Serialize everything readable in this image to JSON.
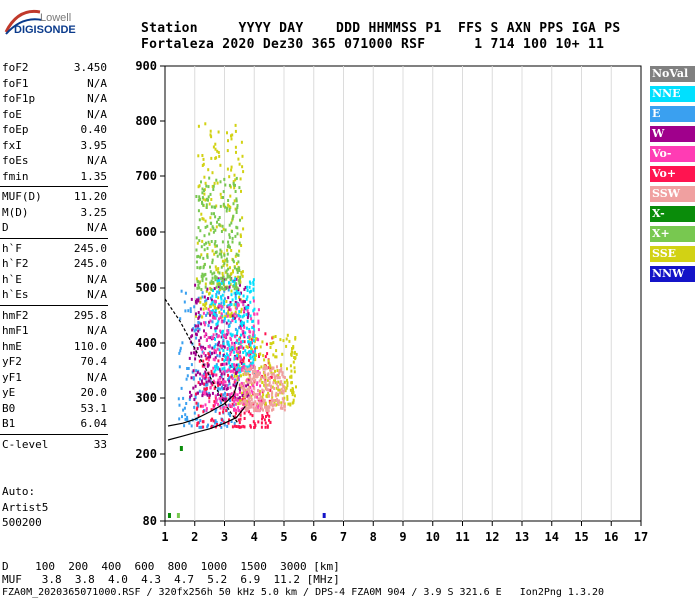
{
  "logo": {
    "line1": "Lowell",
    "line2": "DIGISONDE"
  },
  "header": {
    "row1": "Station     YYYY DAY    DDD HHMMSS P1  FFS S AXN PPS IGA PS",
    "row2": "Fortaleza 2020 Dez30 365 071000 RSF      1 714 100 10+ 11"
  },
  "params": [
    [
      {
        "label": "foF2",
        "value": "3.450"
      },
      {
        "label": "foF1",
        "value": "N/A"
      },
      {
        "label": "foF1p",
        "value": "N/A"
      },
      {
        "label": "foE",
        "value": "N/A"
      },
      {
        "label": "foEp",
        "value": "0.40"
      },
      {
        "label": "fxI",
        "value": "3.95"
      },
      {
        "label": "foEs",
        "value": "N/A"
      },
      {
        "label": "fmin",
        "value": "1.35"
      }
    ],
    [
      {
        "label": "MUF(D)",
        "value": "11.20"
      },
      {
        "label": "M(D)",
        "value": "3.25"
      },
      {
        "label": "D",
        "value": "N/A"
      }
    ],
    [
      {
        "label": "h`F",
        "value": "245.0"
      },
      {
        "label": "h`F2",
        "value": "245.0"
      },
      {
        "label": "h`E",
        "value": "N/A"
      },
      {
        "label": "h`Es",
        "value": "N/A"
      }
    ],
    [
      {
        "label": "hmF2",
        "value": "295.8"
      },
      {
        "label": "hmF1",
        "value": "N/A"
      },
      {
        "label": "hmE",
        "value": "110.0"
      },
      {
        "label": "yF2",
        "value": "70.4"
      },
      {
        "label": "yF1",
        "value": "N/A"
      },
      {
        "label": "yE",
        "value": "20.0"
      },
      {
        "label": "B0",
        "value": "53.1"
      },
      {
        "label": "B1",
        "value": "6.04"
      }
    ],
    [
      {
        "label": "C-level",
        "value": "33"
      }
    ]
  ],
  "auto": {
    "line1": "Auto:",
    "line2": "Artist5",
    "line3": "500200"
  },
  "legend": [
    {
      "label": "NoVal",
      "color": "#808080"
    },
    {
      "label": "NNE",
      "color": "#00e0ff"
    },
    {
      "label": "E",
      "color": "#3aa0f0"
    },
    {
      "label": "W",
      "color": "#a0008c"
    },
    {
      "label": "Vo-",
      "color": "#ff3cb4"
    },
    {
      "label": "Vo+",
      "color": "#ff1450"
    },
    {
      "label": "SSW",
      "color": "#f0a0a0"
    },
    {
      "label": "X-",
      "color": "#0a8c0a"
    },
    {
      "label": "X+",
      "color": "#78c850"
    },
    {
      "label": "SSE",
      "color": "#d2d214"
    },
    {
      "label": "NNW",
      "color": "#1414c8"
    }
  ],
  "footer": {
    "d_row": "D    100  200  400  600  800  1000  1500  3000 [km]",
    "muf_row": "MUF   3.8  3.8  4.0  4.3  4.7  5.2  6.9  11.2 [MHz]",
    "file_row": "FZA0M_2020365071000.RSF / 320fx256h 50 kHz 5.0 km / DPS-4 FZA0M 904 / 3.9 S 321.6 E   Ion2Png 1.3.20"
  },
  "chart_data": {
    "type": "scatter",
    "xlabel": "",
    "ylabel": "",
    "xlim": [
      1,
      17
    ],
    "ylim": [
      80,
      900
    ],
    "x_ticks": [
      "1",
      "2",
      "3",
      "4",
      "5",
      "6",
      "7",
      "8",
      "9",
      "10",
      "11",
      "12",
      "13",
      "14",
      "15",
      "16",
      "17"
    ],
    "y_ticks": [
      "80",
      "200",
      "300",
      "400",
      "500",
      "600",
      "700",
      "800",
      "900"
    ],
    "yscale": "nonlinear (ionogram height)",
    "traces": [
      {
        "name": "profile",
        "points": [
          [
            1.0,
            480
          ],
          [
            1.5,
            440
          ],
          [
            2.0,
            390
          ],
          [
            2.5,
            340
          ],
          [
            2.9,
            300
          ],
          [
            3.2,
            275
          ],
          [
            3.45,
            255
          ]
        ]
      },
      {
        "name": "virtual-height",
        "points": [
          [
            1.1,
            250
          ],
          [
            1.6,
            255
          ],
          [
            2.0,
            262
          ],
          [
            2.5,
            275
          ],
          [
            3.0,
            290
          ],
          [
            3.3,
            305
          ],
          [
            3.45,
            330
          ]
        ]
      },
      {
        "name": "true-height",
        "points": [
          [
            1.1,
            225
          ],
          [
            1.6,
            232
          ],
          [
            2.0,
            238
          ],
          [
            2.5,
            245
          ],
          [
            3.0,
            255
          ],
          [
            3.4,
            265
          ],
          [
            3.7,
            285
          ]
        ]
      }
    ],
    "clusters": [
      {
        "color": "#3aa0f0",
        "x": [
          1.4,
          3.5
        ],
        "y": [
          250,
          500
        ]
      },
      {
        "color": "#ff1450",
        "x": [
          2.0,
          4.6
        ],
        "y": [
          250,
          420
        ]
      },
      {
        "color": "#d2d214",
        "x": [
          3.3,
          5.4
        ],
        "y": [
          290,
          420
        ]
      },
      {
        "color": "#d2d214",
        "x": [
          2.0,
          3.6
        ],
        "y": [
          450,
          800
        ]
      },
      {
        "color": "#a0008c",
        "x": [
          1.8,
          3.8
        ],
        "y": [
          300,
          520
        ]
      },
      {
        "color": "#00e0ff",
        "x": [
          2.5,
          4.0
        ],
        "y": [
          350,
          520
        ]
      },
      {
        "color": "#ff3cb4",
        "x": [
          2.2,
          4.2
        ],
        "y": [
          280,
          480
        ]
      },
      {
        "color": "#f0a0a0",
        "x": [
          3.5,
          5.0
        ],
        "y": [
          280,
          360
        ]
      },
      {
        "color": "#78c850",
        "x": [
          2.0,
          3.5
        ],
        "y": [
          500,
          700
        ]
      }
    ]
  }
}
